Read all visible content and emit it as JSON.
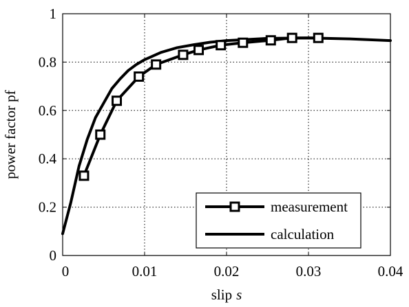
{
  "chart_data": {
    "type": "line",
    "title": "",
    "xlabel": "slip",
    "xlabel_symbol": "s",
    "ylabel": "power factor pf",
    "xlim": [
      0,
      0.04
    ],
    "ylim": [
      0,
      1
    ],
    "xticks": [
      0,
      0.01,
      0.02,
      0.03,
      0.04
    ],
    "xtick_labels": [
      "0",
      "0.01",
      "0.02",
      "0.03",
      "0.04"
    ],
    "yticks": [
      0,
      0.2,
      0.4,
      0.6,
      0.8,
      1
    ],
    "ytick_labels": [
      "0",
      "0.2",
      "0.4",
      "0.6",
      "0.8",
      "1"
    ],
    "grid": true,
    "grid_style": "dotted",
    "legend_position": "bottom-right",
    "colors": {
      "line": "#000000",
      "marker_fill": "#ffffff",
      "background": "#ffffff",
      "grid": "#000000"
    },
    "series": [
      {
        "name": "measurement",
        "marker": "square",
        "x": [
          0.0026,
          0.0046,
          0.0066,
          0.0093,
          0.0114,
          0.0147,
          0.0166,
          0.0193,
          0.022,
          0.0254,
          0.028,
          0.0312
        ],
        "y": [
          0.33,
          0.5,
          0.64,
          0.74,
          0.79,
          0.83,
          0.85,
          0.87,
          0.88,
          0.89,
          0.9,
          0.9
        ]
      },
      {
        "name": "calculation",
        "marker": "none",
        "x": [
          0,
          0.001,
          0.002,
          0.003,
          0.004,
          0.005,
          0.006,
          0.007,
          0.008,
          0.009,
          0.01,
          0.012,
          0.014,
          0.016,
          0.018,
          0.02,
          0.025,
          0.03,
          0.035,
          0.04
        ],
        "y": [
          0.09,
          0.22,
          0.37,
          0.48,
          0.57,
          0.63,
          0.69,
          0.73,
          0.765,
          0.79,
          0.81,
          0.84,
          0.86,
          0.872,
          0.882,
          0.889,
          0.898,
          0.9,
          0.896,
          0.889
        ]
      }
    ]
  }
}
